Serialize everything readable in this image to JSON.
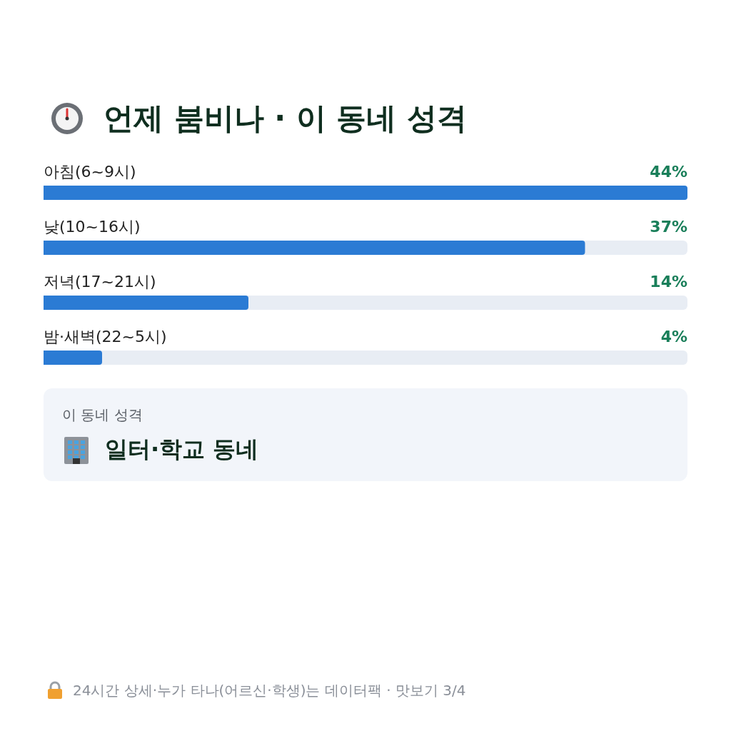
{
  "chart_data": {
    "type": "bar",
    "orientation": "horizontal",
    "title": "언제 붐비나 · 이 동네 성격",
    "categories": [
      "아침(6~9시)",
      "낮(10~16시)",
      "저녁(17~21시)",
      "밤·새벽(22~5시)"
    ],
    "values": [
      44,
      37,
      14,
      4
    ],
    "value_labels": [
      "44%",
      "37%",
      "14%",
      "4%"
    ],
    "color": "#2b7bd4",
    "annotations": [
      "이 동네 성격",
      "일터·학교 동네",
      "24시간 상세·누가 타나(어르신·학생)는 데이터팩 · 맛보기 3/4"
    ]
  }
}
